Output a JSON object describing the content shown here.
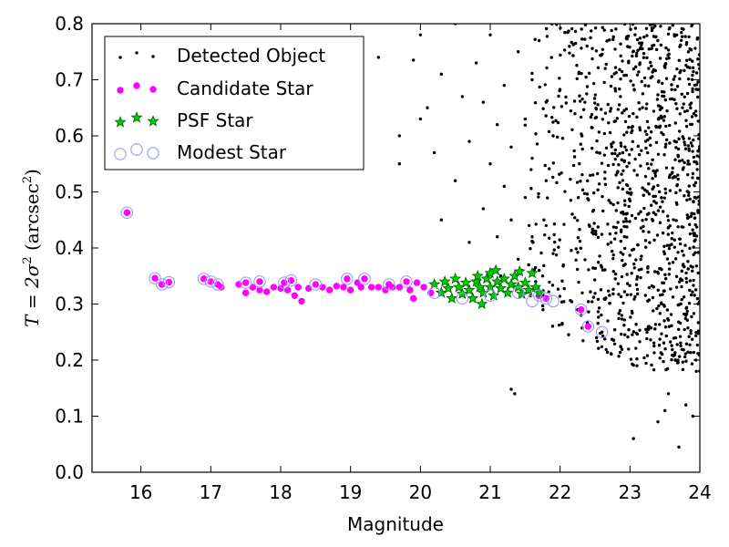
{
  "chart_data": {
    "type": "scatter",
    "xlabel": "Magnitude",
    "ylabel": {
      "prefix": "T = 2σ",
      "prefix_sup": "2",
      "unit_open": " (arcsec",
      "unit_sup": "2",
      "unit_close": ")"
    },
    "xlim": [
      15.3,
      24.0
    ],
    "ylim": [
      0.0,
      0.8
    ],
    "xticks": [
      16,
      17,
      18,
      19,
      20,
      21,
      22,
      23,
      24
    ],
    "yticks": [
      0.0,
      0.1,
      0.2,
      0.3,
      0.4,
      0.5,
      0.6,
      0.7,
      0.8
    ],
    "grid": false,
    "legend_position": "top-left",
    "colors": {
      "detected": "#000000",
      "candidate_fill": "#ff00ff",
      "candidate_edge": "#ff00ff",
      "psf_fill": "#00cc00",
      "psf_edge": "#006400",
      "modest_edge": "#9a9aff"
    },
    "series": [
      {
        "name": "Detected Object",
        "marker": "dot",
        "points": [
          [
            15.8,
            0.463
          ],
          [
            19.7,
            0.55
          ],
          [
            19.4,
            0.74
          ],
          [
            19.7,
            0.6
          ],
          [
            19.9,
            0.735
          ],
          [
            19.1,
            0.546
          ],
          [
            19.1,
            0.62
          ],
          [
            20.0,
            0.63
          ],
          [
            20.0,
            0.78
          ],
          [
            20.1,
            0.65
          ],
          [
            20.3,
            0.71
          ],
          [
            20.5,
            0.8
          ],
          [
            20.6,
            0.67
          ],
          [
            20.7,
            0.59
          ],
          [
            20.8,
            0.73
          ],
          [
            20.9,
            0.47
          ],
          [
            21.0,
            0.55
          ],
          [
            21.0,
            0.78
          ],
          [
            21.1,
            0.62
          ],
          [
            21.1,
            0.42
          ],
          [
            21.2,
            0.51
          ],
          [
            21.2,
            0.69
          ],
          [
            21.3,
            0.58
          ],
          [
            21.3,
            0.45
          ],
          [
            21.3,
            0.148
          ],
          [
            21.35,
            0.14
          ],
          [
            21.4,
            0.75
          ],
          [
            21.4,
            0.38
          ],
          [
            21.5,
            0.63
          ],
          [
            21.5,
            0.49
          ],
          [
            21.6,
            0.7
          ],
          [
            21.6,
            0.56
          ],
          [
            21.6,
            0.42
          ],
          [
            21.7,
            0.77
          ],
          [
            21.7,
            0.36
          ],
          [
            21.8,
            0.66
          ],
          [
            21.8,
            0.52
          ],
          [
            21.8,
            0.44
          ],
          [
            21.9,
            0.6
          ],
          [
            21.9,
            0.39
          ],
          [
            20.7,
            0.41
          ],
          [
            20.5,
            0.52
          ],
          [
            20.3,
            0.45
          ],
          [
            20.2,
            0.57
          ],
          [
            20.9,
            0.66
          ],
          [
            21.15,
            0.35
          ],
          [
            21.45,
            0.36
          ],
          [
            21.55,
            0.37
          ],
          [
            21.75,
            0.35
          ],
          [
            21.65,
            0.34
          ],
          [
            22.25,
            0.29
          ],
          [
            22.3,
            0.28
          ],
          [
            22.4,
            0.26
          ],
          [
            22.6,
            0.25
          ],
          [
            23.05,
            0.06
          ],
          [
            23.7,
            0.045
          ],
          [
            23.4,
            0.09
          ],
          [
            23.8,
            0.12
          ],
          [
            23.9,
            0.1
          ],
          [
            23.55,
            0.14
          ],
          [
            23.95,
            0.18
          ],
          [
            23.65,
            0.2
          ],
          [
            23.1,
            0.19
          ],
          [
            23.5,
            0.11
          ]
        ]
      },
      {
        "name": "Candidate Star",
        "marker": "circle",
        "points": [
          [
            15.8,
            0.463
          ],
          [
            16.2,
            0.346
          ],
          [
            16.3,
            0.335
          ],
          [
            16.4,
            0.339
          ],
          [
            16.9,
            0.345
          ],
          [
            17.0,
            0.34
          ],
          [
            17.1,
            0.335
          ],
          [
            17.15,
            0.33
          ],
          [
            17.4,
            0.335
          ],
          [
            17.5,
            0.338
          ],
          [
            17.5,
            0.32
          ],
          [
            17.6,
            0.33
          ],
          [
            17.7,
            0.325
          ],
          [
            17.7,
            0.34
          ],
          [
            17.8,
            0.322
          ],
          [
            17.9,
            0.33
          ],
          [
            18.0,
            0.328
          ],
          [
            18.05,
            0.338
          ],
          [
            18.1,
            0.325
          ],
          [
            18.15,
            0.342
          ],
          [
            18.2,
            0.315
          ],
          [
            18.25,
            0.33
          ],
          [
            18.3,
            0.305
          ],
          [
            18.4,
            0.328
          ],
          [
            18.5,
            0.335
          ],
          [
            18.6,
            0.33
          ],
          [
            18.7,
            0.325
          ],
          [
            18.8,
            0.332
          ],
          [
            18.9,
            0.33
          ],
          [
            18.95,
            0.345
          ],
          [
            19.0,
            0.325
          ],
          [
            19.1,
            0.338
          ],
          [
            19.15,
            0.33
          ],
          [
            19.2,
            0.345
          ],
          [
            19.3,
            0.33
          ],
          [
            19.4,
            0.33
          ],
          [
            19.5,
            0.325
          ],
          [
            19.55,
            0.335
          ],
          [
            19.6,
            0.33
          ],
          [
            19.7,
            0.33
          ],
          [
            19.8,
            0.34
          ],
          [
            19.85,
            0.325
          ],
          [
            19.9,
            0.31
          ],
          [
            19.95,
            0.338
          ],
          [
            20.05,
            0.33
          ],
          [
            20.15,
            0.32
          ],
          [
            21.7,
            0.315
          ],
          [
            21.8,
            0.31
          ],
          [
            22.3,
            0.29
          ],
          [
            22.4,
            0.26
          ]
        ]
      },
      {
        "name": "PSF Star",
        "marker": "star",
        "points": [
          [
            20.2,
            0.335
          ],
          [
            20.3,
            0.32
          ],
          [
            20.35,
            0.34
          ],
          [
            20.4,
            0.328
          ],
          [
            20.45,
            0.31
          ],
          [
            20.5,
            0.345
          ],
          [
            20.55,
            0.33
          ],
          [
            20.6,
            0.318
          ],
          [
            20.65,
            0.338
          ],
          [
            20.7,
            0.325
          ],
          [
            20.75,
            0.31
          ],
          [
            20.8,
            0.34
          ],
          [
            20.82,
            0.35
          ],
          [
            20.85,
            0.33
          ],
          [
            20.9,
            0.32
          ],
          [
            20.95,
            0.345
          ],
          [
            21.0,
            0.355
          ],
          [
            21.0,
            0.33
          ],
          [
            21.05,
            0.315
          ],
          [
            21.1,
            0.34
          ],
          [
            21.15,
            0.328
          ],
          [
            21.2,
            0.345
          ],
          [
            21.25,
            0.32
          ],
          [
            21.3,
            0.335
          ],
          [
            21.35,
            0.35
          ],
          [
            21.4,
            0.33
          ],
          [
            21.45,
            0.318
          ],
          [
            21.5,
            0.338
          ],
          [
            21.55,
            0.325
          ],
          [
            21.6,
            0.355
          ],
          [
            21.65,
            0.33
          ],
          [
            21.7,
            0.32
          ],
          [
            20.88,
            0.3
          ],
          [
            21.08,
            0.36
          ],
          [
            21.42,
            0.358
          ]
        ]
      },
      {
        "name": "Modest Star",
        "marker": "ring",
        "points": [
          [
            15.8,
            0.463
          ],
          [
            16.2,
            0.346
          ],
          [
            16.3,
            0.335
          ],
          [
            16.4,
            0.339
          ],
          [
            16.9,
            0.345
          ],
          [
            17.0,
            0.34
          ],
          [
            17.1,
            0.335
          ],
          [
            17.5,
            0.338
          ],
          [
            17.7,
            0.34
          ],
          [
            18.05,
            0.338
          ],
          [
            18.15,
            0.342
          ],
          [
            18.5,
            0.335
          ],
          [
            18.95,
            0.345
          ],
          [
            19.2,
            0.345
          ],
          [
            19.55,
            0.335
          ],
          [
            19.8,
            0.34
          ],
          [
            20.2,
            0.32
          ],
          [
            20.6,
            0.31
          ],
          [
            21.0,
            0.315
          ],
          [
            21.4,
            0.32
          ],
          [
            21.7,
            0.315
          ],
          [
            21.8,
            0.31
          ],
          [
            21.9,
            0.305
          ],
          [
            22.3,
            0.29
          ],
          [
            22.4,
            0.26
          ],
          [
            22.6,
            0.25
          ],
          [
            21.6,
            0.305
          ]
        ]
      }
    ],
    "dense_cloud": {
      "series": "Detected Object",
      "x_range": [
        21.4,
        24.0
      ],
      "y_range": [
        0.18,
        0.8
      ],
      "count": 1100
    }
  }
}
